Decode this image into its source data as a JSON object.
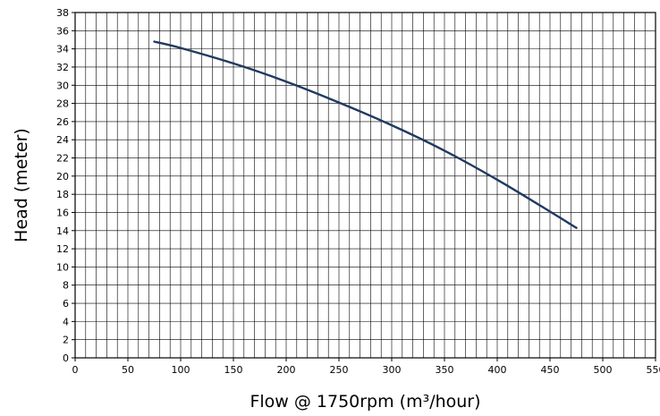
{
  "chart_data": {
    "type": "line",
    "xlabel": "Flow @ 1750rpm (m³/hour)",
    "ylabel": "Head (meter)",
    "xlim": [
      0,
      550
    ],
    "ylim": [
      0,
      38
    ],
    "x_major_step": 50,
    "x_minor_step": 10,
    "y_step": 2,
    "grid": true,
    "series": [
      {
        "color": "#1f3a5f",
        "x": [
          75,
          100,
          150,
          200,
          250,
          300,
          350,
          400,
          450,
          475
        ],
        "y": [
          34.8,
          34.1,
          32.4,
          30.4,
          28.1,
          25.6,
          22.8,
          19.6,
          16.1,
          14.3
        ]
      }
    ]
  }
}
